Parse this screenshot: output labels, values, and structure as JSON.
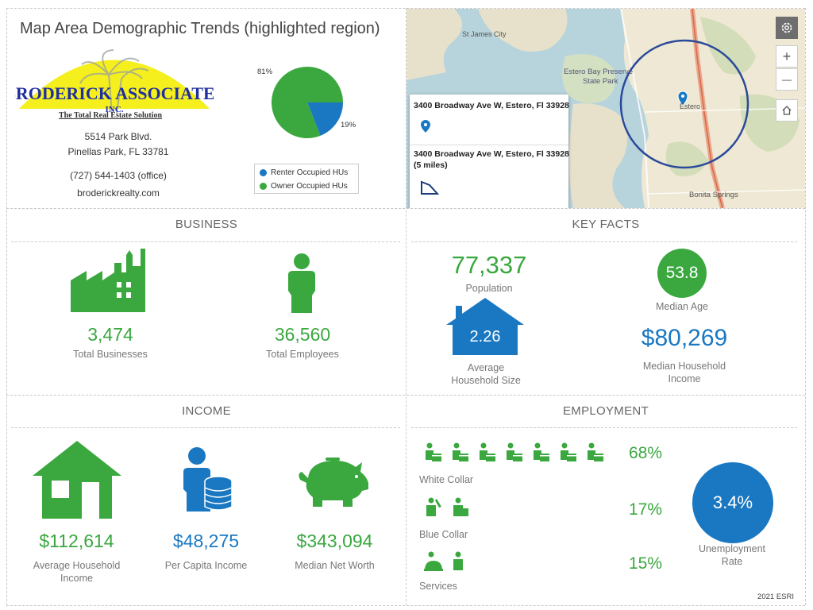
{
  "header": {
    "title": "Map Area Demographic Trends (highlighted region)"
  },
  "company": {
    "logo_name": "BRODERICK ASSOCIATES",
    "logo_inc": "INC.",
    "tagline": "The Total Real Estate Solution",
    "address1": "5514 Park Blvd.",
    "address2": "Pinellas Park, FL 33781",
    "phone": "(727) 544-1403 (office)",
    "website": "broderickrealty.com"
  },
  "housing_pie": {
    "owner_pct_label": "81%",
    "renter_pct_label": "19%",
    "legend": [
      {
        "label": "Renter Occupied HUs",
        "color": "#1a78c2"
      },
      {
        "label": "Owner Occupied HUs",
        "color": "#3aa83f"
      }
    ]
  },
  "map": {
    "labels": {
      "st_james": "St James City",
      "estero_bay": "Estero Bay Preserve",
      "state_park": "State Park",
      "estero": "Estero",
      "bonita": "Bonita Springs"
    },
    "popup": {
      "item1_address": "3400 Broadway Ave W, Estero, Fl 33928",
      "item2_address": "3400 Broadway Ave W, Estero, Fl 33928",
      "item2_radius": "(5 miles)"
    },
    "controls": {
      "zoom_in": "+",
      "zoom_out": "—"
    }
  },
  "business": {
    "title": "BUSINESS",
    "total_businesses": "3,474",
    "total_businesses_label": "Total Businesses",
    "total_employees": "36,560",
    "total_employees_label": "Total Employees"
  },
  "key_facts": {
    "title": "KEY FACTS",
    "population": "77,337",
    "population_label": "Population",
    "median_age": "53.8",
    "median_age_label": "Median Age",
    "household_size": "2.26",
    "household_size_label_1": "Average",
    "household_size_label_2": "Household Size",
    "median_income": "$80,269",
    "median_income_label_1": "Median Household",
    "median_income_label_2": "Income"
  },
  "income": {
    "title": "INCOME",
    "avg_household": "$112,614",
    "avg_household_label_1": "Average Household",
    "avg_household_label_2": "Income",
    "per_capita": "$48,275",
    "per_capita_label": "Per Capita Income",
    "net_worth": "$343,094",
    "net_worth_label": "Median Net Worth"
  },
  "employment": {
    "title": "EMPLOYMENT",
    "white_collar_pct": "68%",
    "white_collar_label": "White Collar",
    "blue_collar_pct": "17%",
    "blue_collar_label": "Blue Collar",
    "services_pct": "15%",
    "services_label": "Services",
    "unemployment": "3.4%",
    "unemployment_label_1": "Unemployment",
    "unemployment_label_2": "Rate"
  },
  "footer": {
    "credit": "2021 ESRI"
  },
  "chart_data": {
    "type": "pie",
    "categories": [
      "Renter Occupied HUs",
      "Owner Occupied HUs"
    ],
    "values": [
      19,
      81
    ],
    "title": "",
    "colors": [
      "#1a78c2",
      "#3aa83f"
    ]
  }
}
